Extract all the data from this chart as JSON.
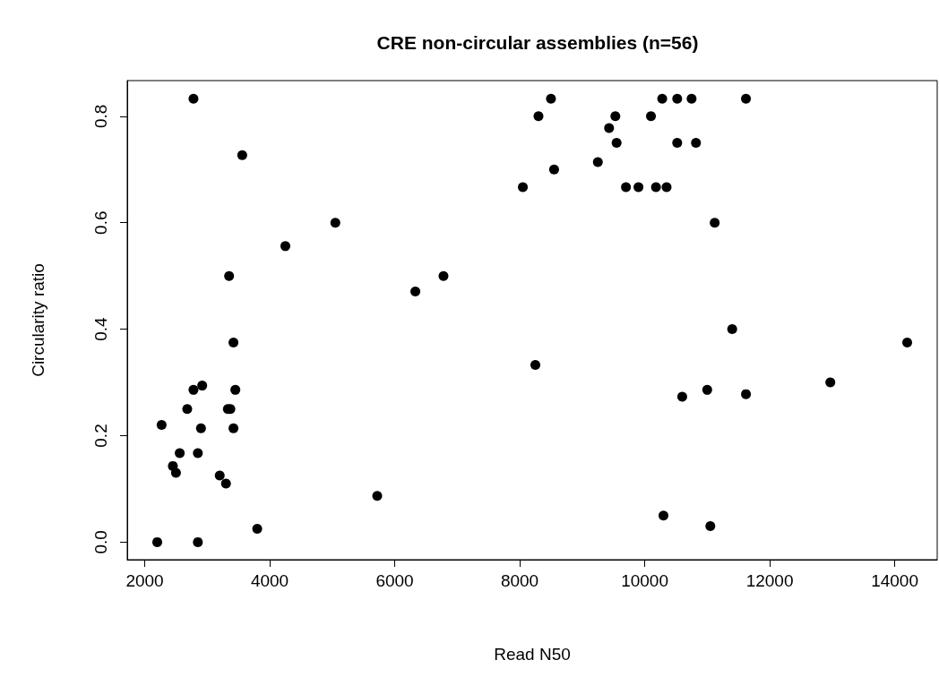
{
  "chart_data": {
    "type": "scatter",
    "title": "CRE non-circular assemblies (n=56)",
    "xlabel": "Read N50",
    "ylabel": "Circularity ratio",
    "x": [
      2200,
      2850,
      2270,
      2450,
      2500,
      2560,
      2680,
      2780,
      2850,
      2900,
      2920,
      2780,
      3200,
      3300,
      3330,
      3370,
      3350,
      3420,
      3420,
      3450,
      3560,
      3800,
      4250,
      5050,
      5720,
      6330,
      6780,
      8050,
      8250,
      8300,
      8500,
      8550,
      9250,
      9430,
      9530,
      9550,
      9700,
      9900,
      10100,
      10180,
      10280,
      10350,
      10300,
      10520,
      10520,
      10600,
      10750,
      10820,
      11000,
      11050,
      11120,
      11400,
      11620,
      11620,
      12970,
      14200
    ],
    "values": [
      0.0,
      0.0,
      0.22,
      0.143,
      0.13,
      0.167,
      0.25,
      0.286,
      0.167,
      0.214,
      0.294,
      0.833,
      0.125,
      0.11,
      0.25,
      0.25,
      0.5,
      0.375,
      0.214,
      0.286,
      0.727,
      0.025,
      0.556,
      0.6,
      0.087,
      0.471,
      0.5,
      0.667,
      0.333,
      0.8,
      0.833,
      0.7,
      0.714,
      0.778,
      0.8,
      0.75,
      0.667,
      0.667,
      0.8,
      0.667,
      0.833,
      0.667,
      0.05,
      0.833,
      0.75,
      0.273,
      0.833,
      0.75,
      0.286,
      0.03,
      0.6,
      0.4,
      0.833,
      0.278,
      0.3,
      0.375
    ],
    "color": "#000000",
    "marker": "circle",
    "xlim": [
      1720,
      14680
    ],
    "xticks": [
      2000,
      4000,
      6000,
      8000,
      10000,
      12000,
      14000
    ],
    "ylim": [
      -0.033,
      0.867
    ],
    "yticks": [
      {
        "value": 0,
        "label": "0.0"
      },
      {
        "value": 0.2,
        "label": "0.2"
      },
      {
        "value": 0.4,
        "label": "0.4"
      },
      {
        "value": 0.6,
        "label": "0.6"
      },
      {
        "value": 0.8,
        "label": "0.8"
      }
    ],
    "grid": false
  }
}
